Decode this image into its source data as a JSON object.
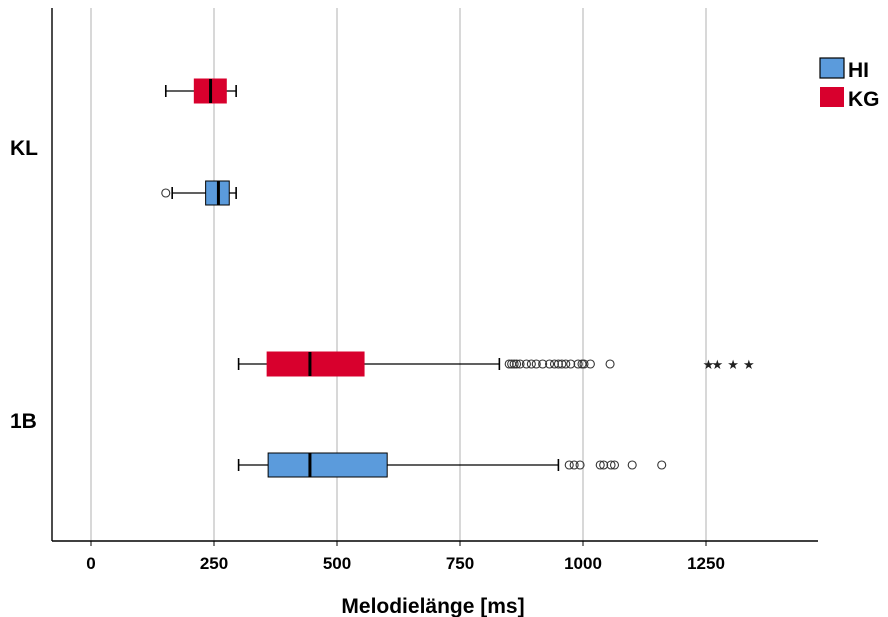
{
  "chart_data": {
    "type": "boxplot",
    "orientation": "horizontal",
    "title": "",
    "xlabel": "Melodielänge [ms]",
    "ylabel": "",
    "xlim": [
      -80,
      1470
    ],
    "xticks": [
      0,
      250,
      500,
      750,
      1000,
      1250
    ],
    "xtick_labels": [
      "0",
      "250",
      "500",
      "750",
      "1000",
      "1250"
    ],
    "grid": "vertical",
    "categories": [
      "KL",
      "1B"
    ],
    "legend": {
      "position": "top-right",
      "entries": [
        {
          "label": "HI",
          "color": "#5b9bdc"
        },
        {
          "label": "KG",
          "color": "#d8002d"
        }
      ]
    },
    "series": [
      {
        "name": "HI",
        "color": "#5b9bdc",
        "boxes": [
          {
            "category": "KL",
            "whisker_low": 165,
            "q1": 233,
            "median": 259,
            "q3": 281,
            "whisker_high": 295,
            "outliers": [
              152
            ],
            "extremes": []
          },
          {
            "category": "1B",
            "whisker_low": 300,
            "q1": 360,
            "median": 445,
            "q3": 602,
            "whisker_high": 950,
            "outliers": [
              972,
              982,
              994,
              1035,
              1042,
              1057,
              1064,
              1100,
              1160
            ],
            "extremes": []
          }
        ]
      },
      {
        "name": "KG",
        "color": "#d8002d",
        "boxes": [
          {
            "category": "KL",
            "whisker_low": 152,
            "q1": 210,
            "median": 243,
            "q3": 275,
            "whisker_high": 295,
            "outliers": [],
            "extremes": []
          },
          {
            "category": "1B",
            "whisker_low": 300,
            "q1": 358,
            "median": 445,
            "q3": 555,
            "whisker_high": 830,
            "outliers": [
              850,
              855,
              860,
              865,
              872,
              885,
              895,
              905,
              918,
              932,
              942,
              950,
              957,
              965,
              975,
              990,
              998,
              1002,
              1015,
              1055
            ],
            "extremes": [
              1255,
              1273,
              1305,
              1337
            ]
          }
        ]
      }
    ]
  }
}
